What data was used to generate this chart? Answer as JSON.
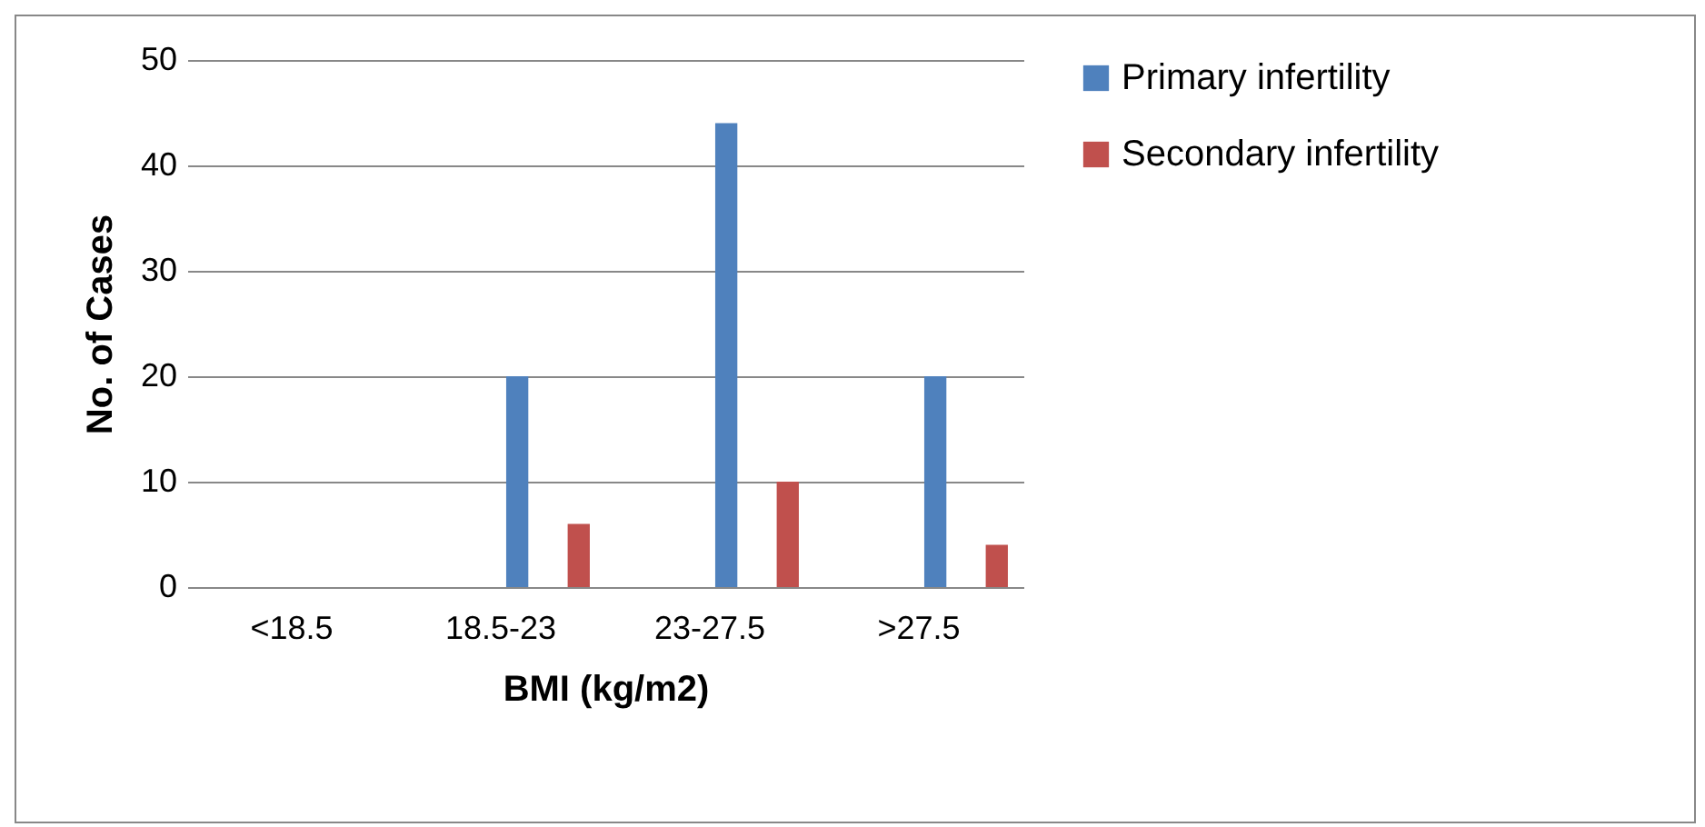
{
  "chart_data": {
    "type": "bar",
    "xlabel": "BMI (kg/m2)",
    "ylabel": "No. of Cases",
    "categories": [
      "<18.5",
      "18.5-23",
      "23-27.5",
      ">27.5"
    ],
    "series": [
      {
        "name": "Primary infertility",
        "color": "#4f81bd",
        "values": [
          0,
          20,
          44,
          20
        ]
      },
      {
        "name": "Secondary infertility",
        "color": "#c0504d",
        "values": [
          0,
          6,
          10,
          4
        ]
      }
    ],
    "ylim": [
      0,
      50
    ],
    "yticks": [
      0,
      10,
      20,
      30,
      40,
      50
    ],
    "grid": "y",
    "legend": "right"
  }
}
